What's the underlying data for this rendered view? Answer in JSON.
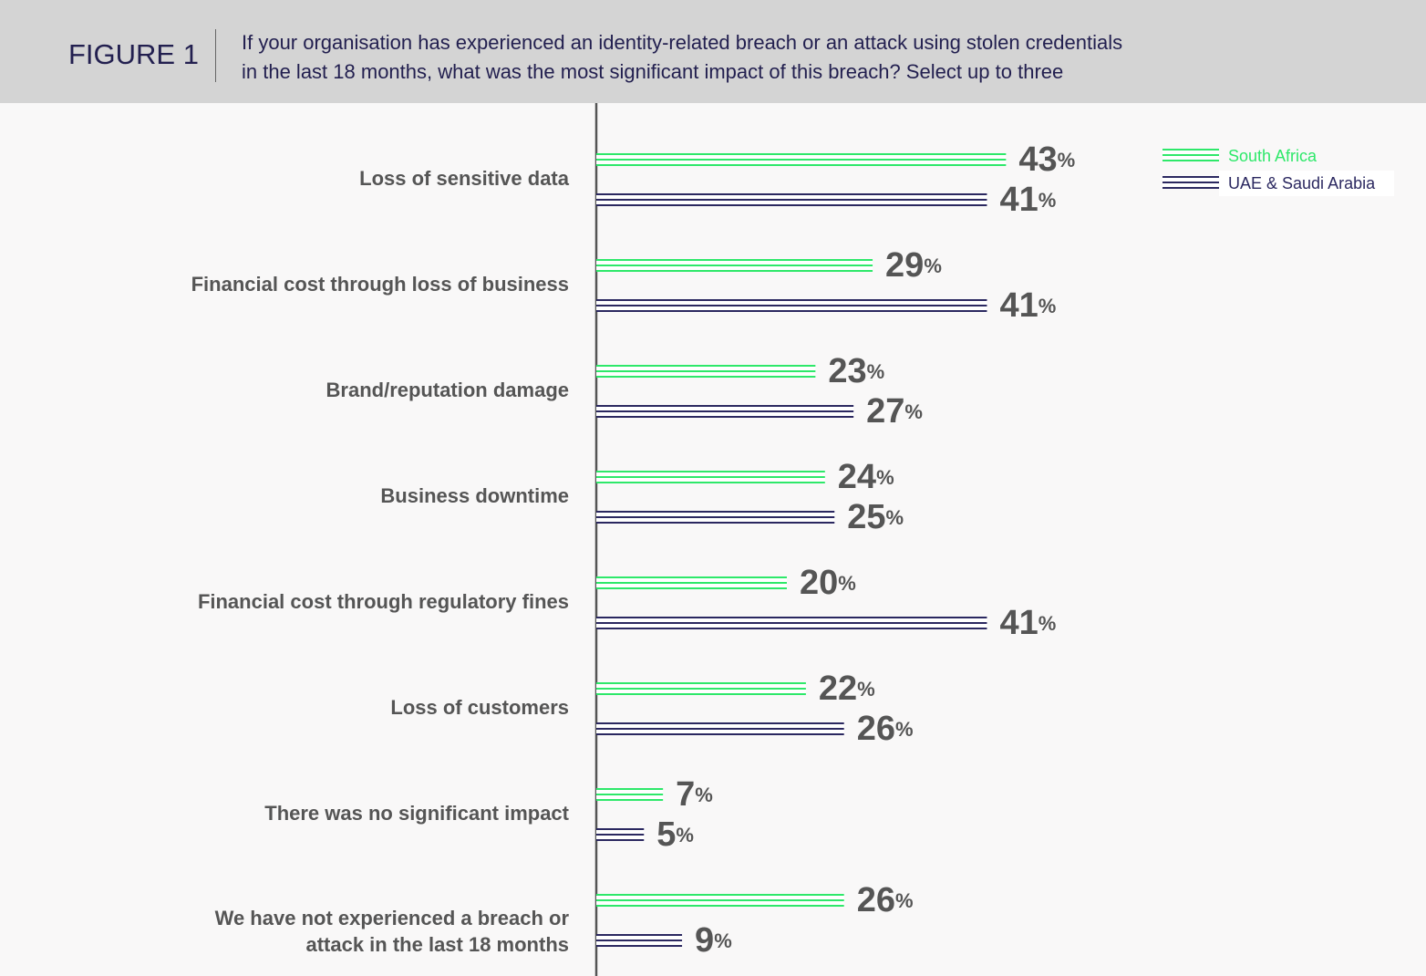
{
  "chart_data": {
    "type": "bar",
    "orientation": "horizontal",
    "figure_label": "FIGURE 1",
    "title": "If your organisation has experienced an identity-related breach or an attack using stolen credentials\nin the last 18 months, what was the most significant impact of this breach? Select up to three",
    "categories": [
      "Loss of sensitive data",
      "Financial cost through loss of business",
      "Brand/reputation damage",
      "Business downtime",
      "Financial cost through regulatory fines",
      "Loss of customers",
      "There was no significant impact",
      "We have not experienced a breach or\nattack in the last 18 months"
    ],
    "series": [
      {
        "name": "South Africa",
        "color": "#2ee86a",
        "values": [
          43,
          29,
          23,
          24,
          20,
          22,
          7,
          26
        ],
        "value_labels": [
          "43%",
          "29%",
          "23%",
          "24%",
          "20%",
          "22%",
          "7%",
          "26%"
        ]
      },
      {
        "name": "UAE & Saudi Arabia",
        "color": "#2b2860",
        "values": [
          41,
          41,
          27,
          25,
          41,
          26,
          5,
          9
        ],
        "value_labels": [
          "41%",
          "41%",
          "27%",
          "25%",
          "41%",
          "26%",
          "5%",
          "9%"
        ]
      }
    ],
    "legend": "top-right"
  }
}
